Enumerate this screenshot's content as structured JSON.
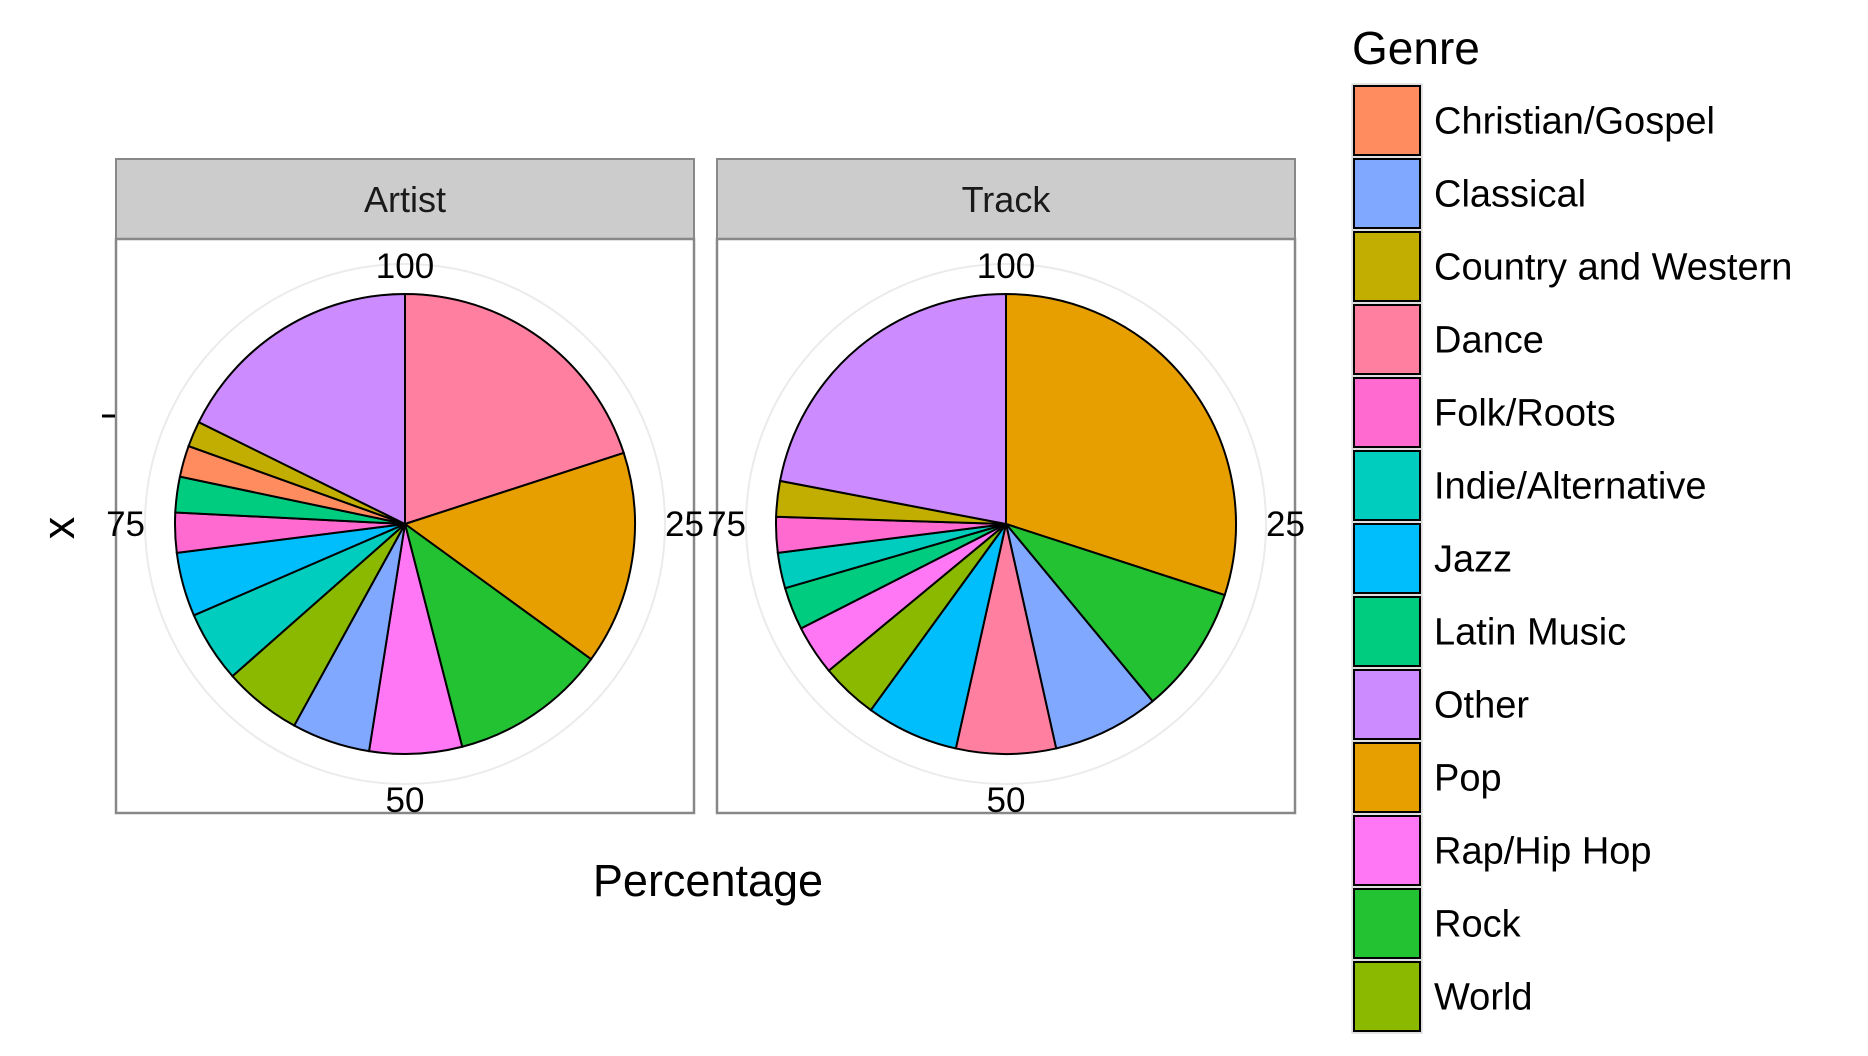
{
  "chart_data": {
    "type": "pie",
    "xlabel": "Percentage",
    "ylabel": "x",
    "y_tick_labels": [
      ""
    ],
    "r_ticks": [
      "100",
      "25",
      "50",
      "75"
    ],
    "legend": {
      "title": "Genre",
      "position": "right"
    },
    "categories": [
      "Christian/Gospel",
      "Classical",
      "Country and Western",
      "Dance",
      "Folk/Roots",
      "Indie/Alternative",
      "Jazz",
      "Latin Music",
      "Other",
      "Pop",
      "Rap/Hip Hop",
      "Rock",
      "World"
    ],
    "colors": {
      "Christian/Gospel": "#ff8c5e",
      "Classical": "#80a8ff",
      "Country and Western": "#c2ae00",
      "Dance": "#ff7fa0",
      "Folk/Roots": "#ff6ad0",
      "Indie/Alternative": "#00cdbe",
      "Jazz": "#00bdfb",
      "Latin Music": "#00cc80",
      "Other": "#cc8cff",
      "Pop": "#e79f00",
      "Rap/Hip Hop": "#ff77f5",
      "Rock": "#22c232",
      "World": "#8bb900"
    },
    "panels": [
      {
        "label": "Artist",
        "slices": [
          {
            "category": "Dance",
            "value": 20.0
          },
          {
            "category": "Pop",
            "value": 15.0
          },
          {
            "category": "Rock",
            "value": 11.0
          },
          {
            "category": "Rap/Hip Hop",
            "value": 6.5
          },
          {
            "category": "Classical",
            "value": 5.5
          },
          {
            "category": "World",
            "value": 5.5
          },
          {
            "category": "Indie/Alternative",
            "value": 5.0
          },
          {
            "category": "Jazz",
            "value": 4.5
          },
          {
            "category": "Folk/Roots",
            "value": 2.8
          },
          {
            "category": "Latin Music",
            "value": 2.5
          },
          {
            "category": "Christian/Gospel",
            "value": 2.2
          },
          {
            "category": "Country and Western",
            "value": 1.8
          },
          {
            "category": "Other",
            "value": 17.7
          }
        ]
      },
      {
        "label": "Track",
        "slices": [
          {
            "category": "Pop",
            "value": 30.0
          },
          {
            "category": "Rock",
            "value": 9.0
          },
          {
            "category": "Classical",
            "value": 7.5
          },
          {
            "category": "Dance",
            "value": 7.0
          },
          {
            "category": "Jazz",
            "value": 6.5
          },
          {
            "category": "World",
            "value": 4.0
          },
          {
            "category": "Rap/Hip Hop",
            "value": 3.5
          },
          {
            "category": "Latin Music",
            "value": 3.0
          },
          {
            "category": "Indie/Alternative",
            "value": 2.5
          },
          {
            "category": "Folk/Roots",
            "value": 2.5
          },
          {
            "category": "Country and Western",
            "value": 2.5
          },
          {
            "category": "Other",
            "value": 22.0
          }
        ]
      }
    ]
  }
}
